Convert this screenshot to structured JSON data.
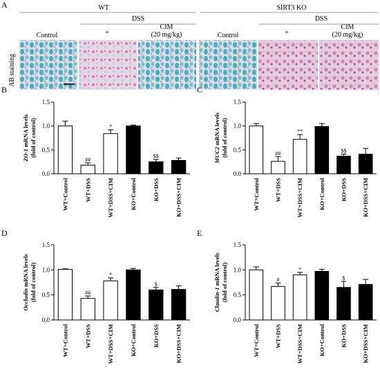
{
  "panel_a": {
    "letter": "A",
    "wt_label": "WT",
    "ko_label": "SIRT3 KO",
    "dss_label": "DSS",
    "col_labels": [
      "Control",
      "+",
      "CIM\n(20 mg/kg)",
      "Control",
      "+",
      "CIM\n(20 mg/kg)"
    ],
    "stain_label": "AB staining"
  },
  "colors": {
    "wt_bar": "#ffffff",
    "ko_bar": "#000000",
    "stain_blue": "#5aa7b8",
    "stain_pink": "#d49cc0"
  },
  "chart_data": [
    {
      "panel": "B",
      "type": "bar",
      "ylabel_gene": "ZO-1",
      "ylabel_rest": " mRNA levels",
      "ylabel2": "(fold of control)",
      "categories": [
        "WT+Control",
        "WT+DSS",
        "WT+DSS+CIM",
        "KO+Control",
        "KO+DSS",
        "KO+DSS+CIM"
      ],
      "fills": [
        "white",
        "white",
        "white",
        "black",
        "black",
        "black"
      ],
      "values": [
        1.0,
        0.18,
        0.84,
        1.0,
        0.25,
        0.28
      ],
      "errors": [
        0.1,
        0.05,
        0.08,
        0.02,
        0.05,
        0.05
      ],
      "annotations": [
        "",
        "##",
        "*",
        "",
        "$$",
        ""
      ],
      "ylim": [
        0,
        1.5
      ],
      "yticks": [
        "0.0",
        "0.5",
        "1.0",
        "1.5"
      ]
    },
    {
      "panel": "C",
      "type": "bar",
      "ylabel_gene": "MUC2",
      "ylabel_rest": " mRNA levels",
      "ylabel2": "(fold of control)",
      "categories": [
        "WT+Control",
        "WT+DSS",
        "WT+DSS+CIM",
        "KO+Control",
        "KO+DSS",
        "KO+DSS+CIM"
      ],
      "fills": [
        "white",
        "white",
        "white",
        "black",
        "black",
        "black"
      ],
      "values": [
        1.0,
        0.26,
        0.72,
        0.99,
        0.37,
        0.41
      ],
      "errors": [
        0.05,
        0.1,
        0.1,
        0.06,
        0.04,
        0.12
      ],
      "annotations": [
        "",
        "##",
        "**",
        "",
        "$$",
        ""
      ],
      "ylim": [
        0,
        1.5
      ],
      "yticks": [
        "0.0",
        "0.5",
        "1.0",
        "1.5"
      ]
    },
    {
      "panel": "D",
      "type": "bar",
      "ylabel_gene": "Occludin",
      "ylabel_rest": " mRNA levels",
      "ylabel2": "(fold of control)",
      "categories": [
        "WT+Control",
        "WT+DSS",
        "WT+DSS+CIM",
        "KO+Control",
        "KO+DSS",
        "KO+DSS+CIM"
      ],
      "fills": [
        "white",
        "white",
        "white",
        "black",
        "black",
        "black"
      ],
      "values": [
        1.01,
        0.43,
        0.78,
        1.0,
        0.6,
        0.61
      ],
      "errors": [
        0.01,
        0.05,
        0.06,
        0.03,
        0.05,
        0.07
      ],
      "annotations": [
        "",
        "##",
        "*",
        "",
        "$",
        ""
      ],
      "ylim": [
        0,
        1.5
      ],
      "yticks": [
        "0.0",
        "0.5",
        "1.0",
        "1.5"
      ]
    },
    {
      "panel": "E",
      "type": "bar",
      "ylabel_gene": "Claudin-1",
      "ylabel_rest": " mRNA levels",
      "ylabel2": "(fold of control)",
      "categories": [
        "WT+Control",
        "WT+DSS",
        "WT+DSS+CIM",
        "KO+Control",
        "KO+DSS",
        "KO+DSS+CIM"
      ],
      "fills": [
        "white",
        "white",
        "white",
        "black",
        "black",
        "black"
      ],
      "values": [
        1.0,
        0.67,
        0.9,
        0.97,
        0.65,
        0.71
      ],
      "errors": [
        0.06,
        0.07,
        0.05,
        0.04,
        0.12,
        0.1
      ],
      "annotations": [
        "",
        "#",
        "*",
        "",
        "$",
        ""
      ],
      "ylim": [
        0,
        1.5
      ],
      "yticks": [
        "0.0",
        "0.5",
        "1.0",
        "1.5"
      ]
    }
  ]
}
